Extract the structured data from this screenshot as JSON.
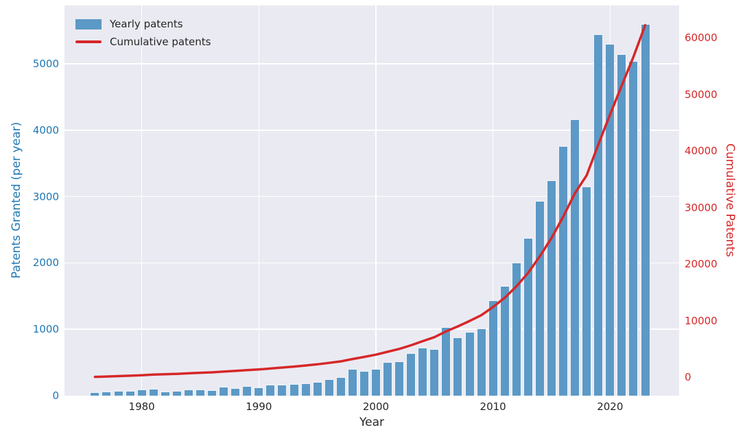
{
  "chart_data": {
    "type": "bar",
    "title": "",
    "xlabel": "Year",
    "ylabel_left": "Patents Granted (per year)",
    "ylabel_right": "Cumulative Patents",
    "grid": true,
    "legend_position": "upper-left",
    "plot_background": "#eaeaf2",
    "figure_background": "#ffffff",
    "x_axis": {
      "lim": [
        1973.4,
        2025.9
      ],
      "ticks": [
        1980,
        1990,
        2000,
        2010,
        2020
      ],
      "tick_labels": [
        "1980",
        "1990",
        "2000",
        "2010",
        "2020"
      ],
      "color": "#262626"
    },
    "left_axis": {
      "lim": [
        0,
        5880
      ],
      "ticks": [
        0,
        1000,
        2000,
        3000,
        4000,
        5000
      ],
      "tick_labels": [
        "0",
        "1000",
        "2000",
        "3000",
        "4000",
        "5000"
      ],
      "color": "#1f77b4"
    },
    "right_axis": {
      "lim": [
        -3270,
        65700
      ],
      "ticks": [
        0,
        10000,
        20000,
        30000,
        40000,
        50000,
        60000
      ],
      "tick_labels": [
        "0",
        "10000",
        "20000",
        "30000",
        "40000",
        "50000",
        "60000"
      ],
      "color": "#d62728"
    },
    "categories": [
      1976,
      1977,
      1978,
      1979,
      1980,
      1981,
      1982,
      1983,
      1984,
      1985,
      1986,
      1987,
      1988,
      1989,
      1990,
      1991,
      1992,
      1993,
      1994,
      1995,
      1996,
      1997,
      1998,
      1999,
      2000,
      2001,
      2002,
      2003,
      2004,
      2005,
      2006,
      2007,
      2008,
      2009,
      2010,
      2011,
      2012,
      2013,
      2014,
      2015,
      2016,
      2017,
      2018,
      2019,
      2020,
      2021,
      2022,
      2023
    ],
    "series": [
      {
        "name": "Yearly patents",
        "type": "bar",
        "axis": "left",
        "color": "#5c99c6",
        "values": [
          50,
          60,
          70,
          75,
          90,
          105,
          65,
          70,
          95,
          95,
          80,
          130,
          115,
          145,
          120,
          165,
          170,
          175,
          190,
          205,
          250,
          275,
          405,
          375,
          405,
          505,
          515,
          640,
          725,
          705,
          1030,
          875,
          960,
          1015,
          1440,
          1650,
          2010,
          2380,
          2930,
          3250,
          3760,
          4160,
          3150,
          5450,
          5300,
          5150,
          5040,
          5600
        ]
      },
      {
        "name": "Cumulative patents",
        "type": "line",
        "axis": "right",
        "color": "#d62728",
        "values": [
          50,
          110,
          180,
          255,
          345,
          450,
          515,
          585,
          680,
          775,
          855,
          985,
          1100,
          1245,
          1365,
          1530,
          1700,
          1875,
          2065,
          2270,
          2520,
          2795,
          3200,
          3575,
          3980,
          4485,
          5000,
          5640,
          6365,
          7070,
          8100,
          8975,
          9935,
          10950,
          12390,
          14040,
          16050,
          18430,
          21360,
          24610,
          28370,
          32530,
          35680,
          41130,
          46430,
          51580,
          56620,
          62220
        ]
      }
    ]
  }
}
